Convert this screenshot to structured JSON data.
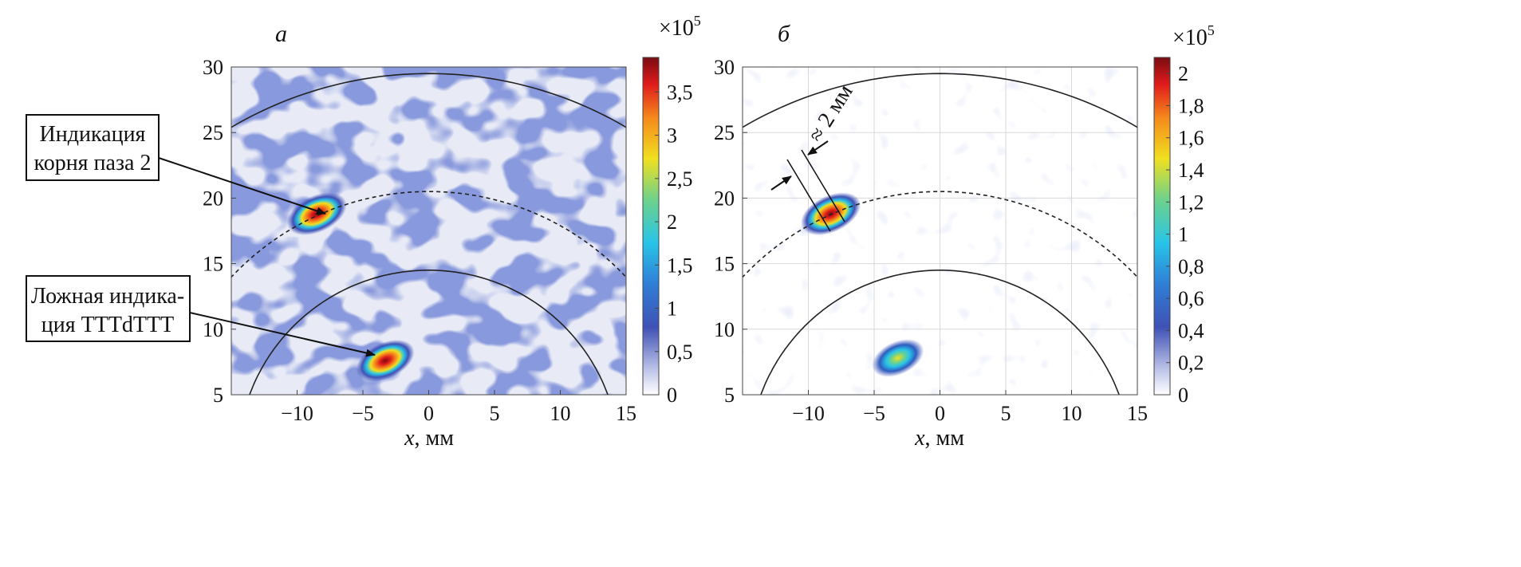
{
  "chart_data": [
    {
      "type": "heatmap",
      "panel_label": "а",
      "xlabel_var": "x",
      "xlabel_unit": ", мм",
      "xlim": [
        -15,
        15
      ],
      "ylim": [
        5,
        30
      ],
      "x_ticks": [
        -10,
        -5,
        0,
        5,
        10,
        15
      ],
      "y_ticks": [
        5,
        10,
        15,
        20,
        25,
        30
      ],
      "colorbar": {
        "multiplier_base": "×10",
        "multiplier_exp": "5",
        "range": [
          0,
          3.9
        ],
        "ticks": [
          0,
          0.5,
          1,
          1.5,
          2,
          2.5,
          3,
          3.5
        ],
        "tick_labels": [
          "0",
          "0,5",
          "1",
          "1,5",
          "2",
          "2,5",
          "3",
          "3,5"
        ],
        "colormap": "white-blue-cyan-yellow-red"
      },
      "background_noise": "high",
      "indications": [
        {
          "x": -8.5,
          "y": 18.8,
          "peak": 3.9
        },
        {
          "x": -3.3,
          "y": 7.6,
          "peak": 3.6
        }
      ],
      "arcs": [
        {
          "center": [
            0,
            0
          ],
          "radius": 29.5,
          "style": "solid"
        },
        {
          "center": [
            0,
            0
          ],
          "radius": 20.5,
          "style": "dashed"
        },
        {
          "center": [
            0,
            0
          ],
          "radius": 14.5,
          "style": "solid"
        }
      ],
      "annotations": [
        {
          "lines": [
            "Индикация",
            "корня паза 2"
          ],
          "target": [
            -8.5,
            18.8
          ]
        },
        {
          "lines": [
            "Ложная индика-",
            "ция ТТТdТТТ"
          ],
          "target": [
            -3.3,
            7.6
          ]
        }
      ]
    },
    {
      "type": "heatmap",
      "panel_label": "б",
      "xlabel_var": "x",
      "xlabel_unit": ", мм",
      "xlim": [
        -15,
        15
      ],
      "ylim": [
        5,
        30
      ],
      "x_ticks": [
        -10,
        -5,
        0,
        5,
        10,
        15
      ],
      "y_ticks": [
        5,
        10,
        15,
        20,
        25,
        30
      ],
      "grid": true,
      "colorbar": {
        "multiplier_base": "×10",
        "multiplier_exp": "5",
        "range": [
          0,
          2.1
        ],
        "ticks": [
          0,
          0.2,
          0.4,
          0.6,
          0.8,
          1,
          1.2,
          1.4,
          1.6,
          1.8,
          2
        ],
        "tick_labels": [
          "0",
          "0,2",
          "0,4",
          "0,6",
          "0,8",
          "1",
          "1,2",
          "1,4",
          "1,6",
          "1,8",
          "2"
        ],
        "colormap": "white-blue-cyan-yellow-red"
      },
      "background_noise": "low",
      "indications": [
        {
          "x": -8.3,
          "y": 18.8,
          "peak": 2.1
        },
        {
          "x": -3.2,
          "y": 7.8,
          "peak": 1.3
        }
      ],
      "arcs": [
        {
          "center": [
            0,
            0
          ],
          "radius": 29.5,
          "style": "solid"
        },
        {
          "center": [
            0,
            0
          ],
          "radius": 20.5,
          "style": "dashed"
        },
        {
          "center": [
            0,
            0
          ],
          "radius": 14.5,
          "style": "solid"
        }
      ],
      "width_annotation": "≈ 2 мм"
    }
  ]
}
